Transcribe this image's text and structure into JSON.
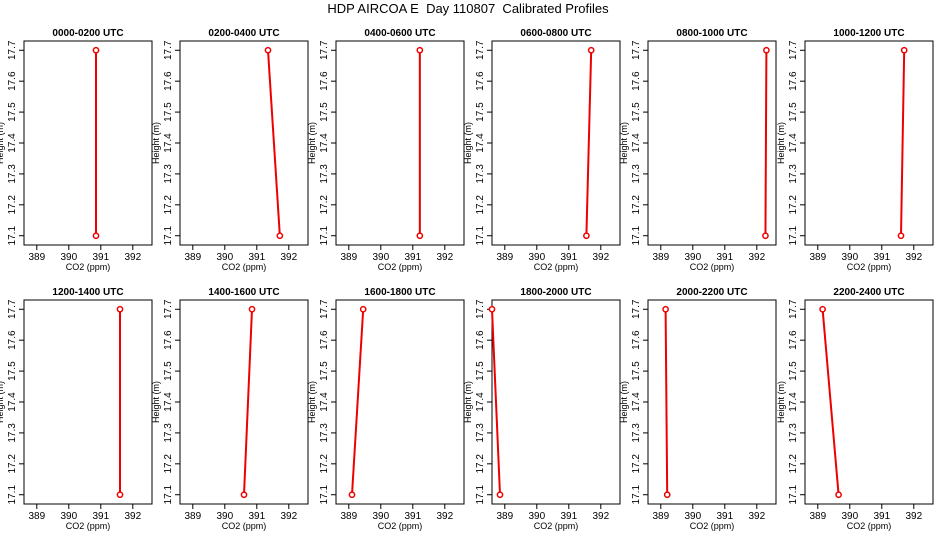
{
  "title": "HDP AIRCOA E  Day 110807  Calibrated Profiles",
  "colors": {
    "profile": "#ee0000",
    "axis": "#000000",
    "background": "#ffffff"
  },
  "chart_data": [
    {
      "type": "line",
      "title": "0000-0200 UTC",
      "xlabel": "CO2 (ppm)",
      "ylabel": "Height (m)",
      "xlim": [
        388.6,
        392.6
      ],
      "ylim": [
        17.07,
        17.73
      ],
      "xticks": [
        "389",
        "390",
        "391",
        "392"
      ],
      "yticks": [
        "17.1",
        "17.2",
        "17.3",
        "17.4",
        "17.5",
        "17.6",
        "17.7"
      ],
      "x": [
        390.85,
        390.85
      ],
      "y": [
        17.1,
        17.7
      ],
      "grid": false
    },
    {
      "type": "line",
      "title": "0200-0400 UTC",
      "xlabel": "CO2 (ppm)",
      "ylabel": "Height (m)",
      "xlim": [
        388.6,
        392.6
      ],
      "ylim": [
        17.07,
        17.73
      ],
      "xticks": [
        "389",
        "390",
        "391",
        "392"
      ],
      "yticks": [
        "17.1",
        "17.2",
        "17.3",
        "17.4",
        "17.5",
        "17.6",
        "17.7"
      ],
      "x": [
        391.72,
        391.35
      ],
      "y": [
        17.1,
        17.7
      ],
      "grid": false
    },
    {
      "type": "line",
      "title": "0400-0600 UTC",
      "xlabel": "CO2 (ppm)",
      "ylabel": "Height (m)",
      "xlim": [
        388.6,
        392.6
      ],
      "ylim": [
        17.07,
        17.73
      ],
      "xticks": [
        "389",
        "390",
        "391",
        "392"
      ],
      "yticks": [
        "17.1",
        "17.2",
        "17.3",
        "17.4",
        "17.5",
        "17.6",
        "17.7"
      ],
      "x": [
        391.22,
        391.22
      ],
      "y": [
        17.1,
        17.7
      ],
      "grid": false
    },
    {
      "type": "line",
      "title": "0600-0800 UTC",
      "xlabel": "CO2 (ppm)",
      "ylabel": "Height (m)",
      "xlim": [
        388.6,
        392.6
      ],
      "ylim": [
        17.07,
        17.73
      ],
      "xticks": [
        "389",
        "390",
        "391",
        "392"
      ],
      "yticks": [
        "17.1",
        "17.2",
        "17.3",
        "17.4",
        "17.5",
        "17.6",
        "17.7"
      ],
      "x": [
        391.55,
        391.7
      ],
      "y": [
        17.1,
        17.7
      ],
      "grid": false
    },
    {
      "type": "line",
      "title": "0800-1000 UTC",
      "xlabel": "CO2 (ppm)",
      "ylabel": "Height (m)",
      "xlim": [
        388.6,
        392.6
      ],
      "ylim": [
        17.07,
        17.73
      ],
      "xticks": [
        "389",
        "390",
        "391",
        "392"
      ],
      "yticks": [
        "17.1",
        "17.2",
        "17.3",
        "17.4",
        "17.5",
        "17.6",
        "17.7"
      ],
      "x": [
        392.27,
        392.3
      ],
      "y": [
        17.1,
        17.7
      ],
      "grid": false
    },
    {
      "type": "line",
      "title": "1000-1200 UTC",
      "xlabel": "CO2 (ppm)",
      "ylabel": "Height (m)",
      "xlim": [
        388.6,
        392.6
      ],
      "ylim": [
        17.07,
        17.73
      ],
      "xticks": [
        "389",
        "390",
        "391",
        "392"
      ],
      "yticks": [
        "17.1",
        "17.2",
        "17.3",
        "17.4",
        "17.5",
        "17.6",
        "17.7"
      ],
      "x": [
        391.6,
        391.7
      ],
      "y": [
        17.1,
        17.7
      ],
      "grid": false
    },
    {
      "type": "line",
      "title": "1200-1400 UTC",
      "xlabel": "CO2 (ppm)",
      "ylabel": "Height (m)",
      "xlim": [
        388.6,
        392.6
      ],
      "ylim": [
        17.07,
        17.73
      ],
      "xticks": [
        "389",
        "390",
        "391",
        "392"
      ],
      "yticks": [
        "17.1",
        "17.2",
        "17.3",
        "17.4",
        "17.5",
        "17.6",
        "17.7"
      ],
      "x": [
        391.6,
        391.6
      ],
      "y": [
        17.1,
        17.7
      ],
      "grid": false
    },
    {
      "type": "line",
      "title": "1400-1600 UTC",
      "xlabel": "CO2 (ppm)",
      "ylabel": "Height (m)",
      "xlim": [
        388.6,
        392.6
      ],
      "ylim": [
        17.07,
        17.73
      ],
      "xticks": [
        "389",
        "390",
        "391",
        "392"
      ],
      "yticks": [
        "17.1",
        "17.2",
        "17.3",
        "17.4",
        "17.5",
        "17.6",
        "17.7"
      ],
      "x": [
        390.6,
        390.85
      ],
      "y": [
        17.1,
        17.7
      ],
      "grid": false
    },
    {
      "type": "line",
      "title": "1600-1800 UTC",
      "xlabel": "CO2 (ppm)",
      "ylabel": "Height (m)",
      "xlim": [
        388.6,
        392.6
      ],
      "ylim": [
        17.07,
        17.73
      ],
      "xticks": [
        "389",
        "390",
        "391",
        "392"
      ],
      "yticks": [
        "17.1",
        "17.2",
        "17.3",
        "17.4",
        "17.5",
        "17.6",
        "17.7"
      ],
      "x": [
        389.1,
        389.45
      ],
      "y": [
        17.1,
        17.7
      ],
      "grid": false
    },
    {
      "type": "line",
      "title": "1800-2000 UTC",
      "xlabel": "CO2 (ppm)",
      "ylabel": "Height (m)",
      "xlim": [
        388.6,
        392.6
      ],
      "ylim": [
        17.07,
        17.73
      ],
      "xticks": [
        "389",
        "390",
        "391",
        "392"
      ],
      "yticks": [
        "17.1",
        "17.2",
        "17.3",
        "17.4",
        "17.5",
        "17.6",
        "17.7"
      ],
      "x": [
        388.85,
        388.6
      ],
      "y": [
        17.1,
        17.7
      ],
      "grid": false
    },
    {
      "type": "line",
      "title": "2000-2200 UTC",
      "xlabel": "CO2 (ppm)",
      "ylabel": "Height (m)",
      "xlim": [
        388.6,
        392.6
      ],
      "ylim": [
        17.07,
        17.73
      ],
      "xticks": [
        "389",
        "390",
        "391",
        "392"
      ],
      "yticks": [
        "17.1",
        "17.2",
        "17.3",
        "17.4",
        "17.5",
        "17.6",
        "17.7"
      ],
      "x": [
        389.2,
        389.15
      ],
      "y": [
        17.1,
        17.7
      ],
      "grid": false
    },
    {
      "type": "line",
      "title": "2200-2400 UTC",
      "xlabel": "CO2 (ppm)",
      "ylabel": "Height (m)",
      "xlim": [
        388.6,
        392.6
      ],
      "ylim": [
        17.07,
        17.73
      ],
      "xticks": [
        "389",
        "390",
        "391",
        "392"
      ],
      "yticks": [
        "17.1",
        "17.2",
        "17.3",
        "17.4",
        "17.5",
        "17.6",
        "17.7"
      ],
      "x": [
        389.65,
        389.15
      ],
      "y": [
        17.1,
        17.7
      ],
      "grid": false
    }
  ]
}
